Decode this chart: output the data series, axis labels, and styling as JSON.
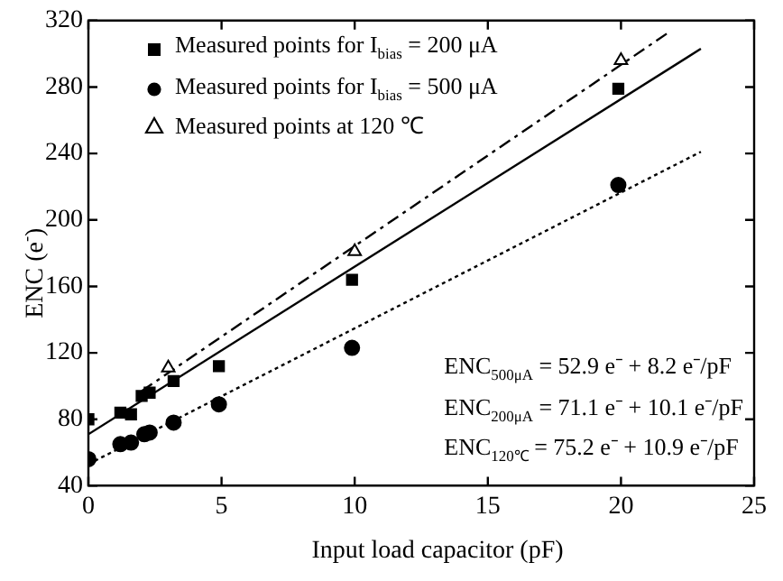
{
  "chart_data": {
    "type": "scatter",
    "xlabel": "Input load capacitor (pF)",
    "ylabel": "ENC (e$^{-}$)",
    "xlim": [
      0,
      25
    ],
    "xticks": [
      0,
      5,
      10,
      15,
      20,
      25
    ],
    "ylim": [
      40,
      320
    ],
    "yticks": [
      40,
      80,
      120,
      160,
      200,
      240,
      280,
      320
    ],
    "grid": false,
    "legend": "top left",
    "series": [
      {
        "name": "Measured points for I$_{bias}$ = 200 μA",
        "marker": "square",
        "color": "#000000",
        "x": [
          0,
          1.2,
          1.6,
          2,
          2.3,
          3.2,
          4.9,
          9.9,
          19.9
        ],
        "values": [
          80,
          84,
          83,
          94,
          96,
          103,
          112,
          164,
          279
        ]
      },
      {
        "name": "Measured points for I$_{bias}$ = 500 μA",
        "marker": "circle",
        "color": "#000000",
        "x": [
          0,
          1.2,
          1.6,
          2.1,
          2.3,
          3.2,
          4.9,
          9.9,
          19.9
        ],
        "values": [
          56,
          65,
          66,
          71,
          72,
          78,
          89,
          123,
          221
        ]
      },
      {
        "name": "Measured points at 120 ℃",
        "marker": "triangle",
        "color": "#000000",
        "x": [
          3,
          10,
          20
        ],
        "values": [
          111,
          181,
          296
        ]
      },
      {
        "type": "line",
        "marker": "none",
        "line_style": "dotted",
        "color": "#000000",
        "x": [
          0,
          23
        ],
        "values": [
          53,
          241
        ]
      },
      {
        "type": "line",
        "marker": "none",
        "line_style": "solid",
        "color": "#000000",
        "x": [
          0,
          23
        ],
        "values": [
          71,
          303
        ]
      },
      {
        "type": "line",
        "marker": "none",
        "line_style": "dashed",
        "color": "#000000",
        "x": [
          2,
          21.8
        ],
        "values": [
          97,
          313
        ]
      }
    ],
    "annotations": [
      "ENC$_{500μA}$ = 52.9 e⁻ + 8.2 e⁻/pF",
      "ENC$_{200μA}$ = 71.1 e⁻ + 10.1 e⁻/pF",
      "ENC$_{120℃}$ = 75.2 e⁻ + 10.9 e⁻/pF"
    ]
  }
}
